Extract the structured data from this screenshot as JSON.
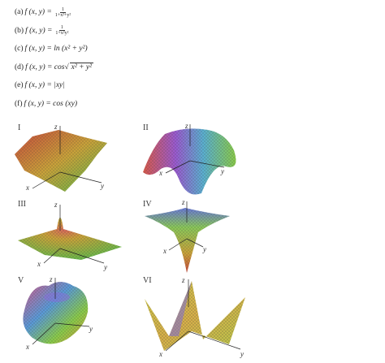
{
  "functions": [
    {
      "label": "(a)",
      "expr": "f (x, y) = ",
      "frac_num": "1",
      "frac_den": "1+x²+y²"
    },
    {
      "label": "(b)",
      "expr": "f (x, y) = ",
      "frac_num": "1",
      "frac_den": "1+x²y²"
    },
    {
      "label": "(c)",
      "expr": "f (x, y) = ln (x² + y²)"
    },
    {
      "label": "(d)",
      "expr": "f (x, y) = cos ",
      "sqrt": "x² + y²"
    },
    {
      "label": "(e)",
      "expr": "f (x, y) = |xy|"
    },
    {
      "label": "(f)",
      "expr": "f (x, y) = cos (xy)"
    }
  ],
  "plots": [
    {
      "id": "I",
      "z": "z",
      "x": "x",
      "y": "y"
    },
    {
      "id": "II",
      "z": "z",
      "x": "x",
      "y": "y"
    },
    {
      "id": "III",
      "z": "z",
      "x": "x",
      "y": "y"
    },
    {
      "id": "IV",
      "z": "z",
      "x": "x",
      "y": "y"
    },
    {
      "id": "V",
      "z": "z",
      "x": "x",
      "y": "y"
    },
    {
      "id": "VI",
      "z": "z",
      "x": "x",
      "y": "y"
    }
  ]
}
